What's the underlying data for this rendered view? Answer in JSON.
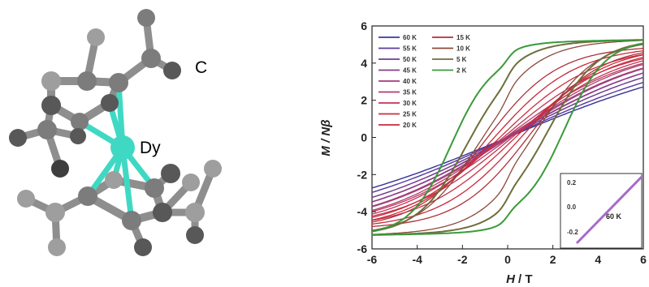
{
  "molecule": {
    "atom_labels": {
      "carbon": "C",
      "dysprosium": "Dy"
    },
    "colors": {
      "dy": "#3fd9c3",
      "bond": "#8e8e8e",
      "carbon_dark": "#585858",
      "carbon_mid": "#7c7c7c",
      "carbon_light": "#9e9e9e"
    }
  },
  "chart_data": {
    "type": "line",
    "xlabel_main": "H",
    "xlabel_unit": "/ T",
    "ylabel": "M / Nβ",
    "xlim": [
      -6,
      6
    ],
    "ylim": [
      -6,
      6
    ],
    "x_ticks": [
      "-6",
      "-4",
      "-2",
      "0",
      "2",
      "4",
      "6"
    ],
    "y_ticks": [
      "6",
      "4",
      "2",
      "0",
      "-2",
      "-4",
      "-6"
    ],
    "legend_position": "top-left",
    "series": [
      {
        "name": "60 K",
        "temperature": 60,
        "color": "#3a3a9e",
        "slope": 0.33,
        "coercive_field": 0,
        "saturation": 5.2
      },
      {
        "name": "55 K",
        "temperature": 55,
        "color": "#5a3c9c",
        "slope": 0.37,
        "coercive_field": 0,
        "saturation": 5.2
      },
      {
        "name": "50 K",
        "temperature": 50,
        "color": "#6e3c92",
        "slope": 0.42,
        "coercive_field": 0,
        "saturation": 5.2
      },
      {
        "name": "45 K",
        "temperature": 45,
        "color": "#8a3c86",
        "slope": 0.47,
        "coercive_field": 0.02,
        "saturation": 5.2
      },
      {
        "name": "40 K",
        "temperature": 40,
        "color": "#a03c78",
        "slope": 0.53,
        "coercive_field": 0.05,
        "saturation": 5.2
      },
      {
        "name": "35 K",
        "temperature": 35,
        "color": "#b53a66",
        "slope": 0.6,
        "coercive_field": 0.1,
        "saturation": 5.2
      },
      {
        "name": "30 K",
        "temperature": 30,
        "color": "#c23552",
        "slope": 0.68,
        "coercive_field": 0.2,
        "saturation": 5.2
      },
      {
        "name": "25 K",
        "temperature": 25,
        "color": "#cc2e3f",
        "slope": 0.78,
        "coercive_field": 0.35,
        "saturation": 5.2
      },
      {
        "name": "20 K",
        "temperature": 20,
        "color": "#c9283a",
        "slope": 0.9,
        "coercive_field": 0.6,
        "saturation": 5.2
      },
      {
        "name": "15 K",
        "temperature": 15,
        "color": "#b0303a",
        "slope": 1.05,
        "coercive_field": 0.9,
        "saturation": 5.2
      },
      {
        "name": "10 K",
        "temperature": 10,
        "color": "#8a4a3a",
        "slope": 1.25,
        "coercive_field": 1.3,
        "saturation": 5.2
      },
      {
        "name": "5 K",
        "temperature": 5,
        "color": "#6e6e3c",
        "slope": 1.5,
        "coercive_field": 1.8,
        "saturation": 5.2
      },
      {
        "name": "2 K",
        "temperature": 2,
        "color": "#3a9a3a",
        "slope": 1.8,
        "coercive_field": 2.5,
        "saturation": 5.2
      }
    ],
    "inset": {
      "label": "60 K",
      "color": "#a86ac8",
      "y_ticks": [
        "0.2",
        "0.0",
        "-0.2"
      ]
    }
  }
}
